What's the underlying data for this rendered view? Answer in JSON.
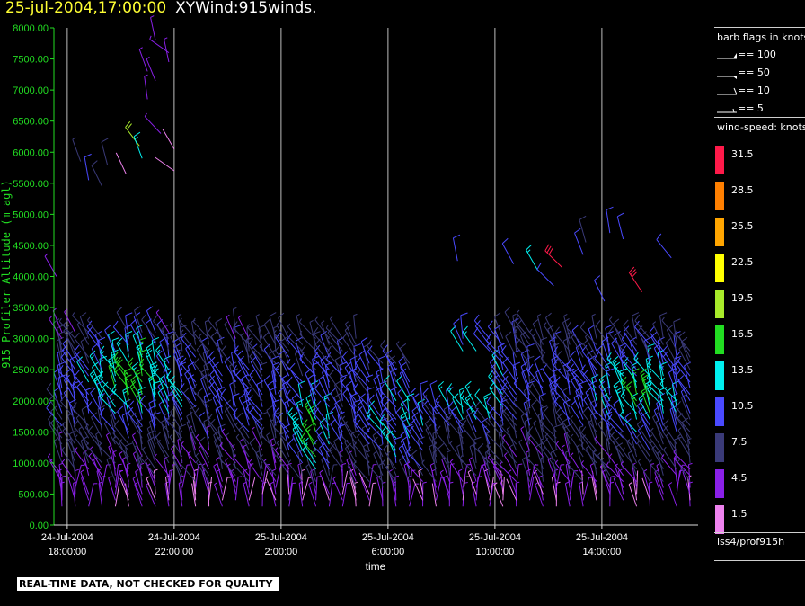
{
  "header": {
    "timestamp": "25-jul-2004,17:00:00",
    "title": "XYWind:915winds."
  },
  "footer": {
    "notice": "REAL-TIME DATA, NOT CHECKED FOR QUALITY"
  },
  "sidebar": {
    "barb_title": "barb flags in knots",
    "barbs": [
      {
        "label": "== 100",
        "type": "pennant"
      },
      {
        "label": "== 50",
        "type": "flag"
      },
      {
        "label": "== 10",
        "type": "full"
      },
      {
        "label": "== 5",
        "type": "half"
      }
    ],
    "ws_title": "wind-speed: knots",
    "colorbar": [
      {
        "label": "31.5",
        "color": "#ff1a4a"
      },
      {
        "label": "28.5",
        "color": "#ff7f00"
      },
      {
        "label": "25.5",
        "color": "#ffa500"
      },
      {
        "label": "22.5",
        "color": "#ffff00"
      },
      {
        "label": "19.5",
        "color": "#a8ea2a"
      },
      {
        "label": "16.5",
        "color": "#22dd22"
      },
      {
        "label": "13.5",
        "color": "#00f0f0"
      },
      {
        "label": "10.5",
        "color": "#4a4aff"
      },
      {
        "label": "7.5",
        "color": "#3a3a78"
      },
      {
        "label": "4.5",
        "color": "#8a20e8"
      },
      {
        "label": "1.5",
        "color": "#ee82ee"
      }
    ],
    "source": "iss4/prof915h"
  },
  "chart_data": {
    "type": "wind-barb profile time-height plot",
    "ylabel": "915 Profiler Altitude (m agl)",
    "xlabel": "time",
    "ylim": [
      0,
      8000
    ],
    "xlim_hours": [
      -0.5,
      23.6
    ],
    "yticks": [
      "0.00",
      "500.00",
      "1000.00",
      "1500.00",
      "2000.00",
      "2500.00",
      "3000.00",
      "3500.00",
      "4000.00",
      "4500.00",
      "5000.00",
      "5500.00",
      "6000.00",
      "6500.00",
      "7000.00",
      "7500.00",
      "8000.00"
    ],
    "xticks": [
      {
        "hour": 0,
        "line1": "24-Jul-2004",
        "line2": "18:00:00"
      },
      {
        "hour": 4,
        "line1": "24-Jul-2004",
        "line2": "22:00:00"
      },
      {
        "hour": 8,
        "line1": "25-Jul-2004",
        "line2": "2:00:00"
      },
      {
        "hour": 12,
        "line1": "25-Jul-2004",
        "line2": "6:00:00"
      },
      {
        "hour": 16,
        "line1": "25-Jul-2004",
        "line2": "10:00:00"
      },
      {
        "hour": 20,
        "line1": "25-Jul-2004",
        "line2": "14:00:00"
      }
    ],
    "grid": "vertical lines at labeled times",
    "barb_sampling": {
      "step_hours": 0.5,
      "step_m": 100,
      "base_m": 300,
      "max_m": 3100
    },
    "upper_barbs": [
      {
        "h": 0.5,
        "z": 5850,
        "speed": 7
      },
      {
        "h": 0.8,
        "z": 5550,
        "speed": 9
      },
      {
        "h": 1.5,
        "z": 5800,
        "speed": 8
      },
      {
        "h": 1.3,
        "z": 5450,
        "speed": 8
      },
      {
        "h": 2.2,
        "z": 5650,
        "speed": 2
      },
      {
        "h": 2.7,
        "z": 6100,
        "speed": 18
      },
      {
        "h": 2.8,
        "z": 5900,
        "speed": 14
      },
      {
        "h": 3.0,
        "z": 6850,
        "speed": 3
      },
      {
        "h": 3.0,
        "z": 7300,
        "speed": 4
      },
      {
        "h": 3.3,
        "z": 7800,
        "speed": 4
      },
      {
        "h": 3.3,
        "z": 7150,
        "speed": 5
      },
      {
        "h": 3.5,
        "z": 6300,
        "speed": 4
      },
      {
        "h": 3.8,
        "z": 7600,
        "speed": 4
      },
      {
        "h": 4.0,
        "z": 6050,
        "speed": 2
      },
      {
        "h": 4.0,
        "z": 5700,
        "speed": 2
      },
      {
        "h": 3.8,
        "z": 7450,
        "speed": 4
      },
      {
        "h": -0.4,
        "z": 4000,
        "speed": 4
      },
      {
        "h": 14.6,
        "z": 4250,
        "speed": 10
      },
      {
        "h": 16.7,
        "z": 4200,
        "speed": 10
      },
      {
        "h": 17.6,
        "z": 4100,
        "speed": 13
      },
      {
        "h": 18.2,
        "z": 3850,
        "speed": 10
      },
      {
        "h": 19.3,
        "z": 4350,
        "speed": 10
      },
      {
        "h": 20.3,
        "z": 4700,
        "speed": 10
      },
      {
        "h": 20.8,
        "z": 4600,
        "speed": 10
      },
      {
        "h": 22.6,
        "z": 4300,
        "speed": 10
      },
      {
        "h": 20.1,
        "z": 3600,
        "speed": 10
      },
      {
        "h": 18.5,
        "z": 4150,
        "speed": 32
      },
      {
        "h": 21.5,
        "z": 3750,
        "speed": 32
      },
      {
        "h": 19.4,
        "z": 4550,
        "speed": 8
      }
    ]
  }
}
